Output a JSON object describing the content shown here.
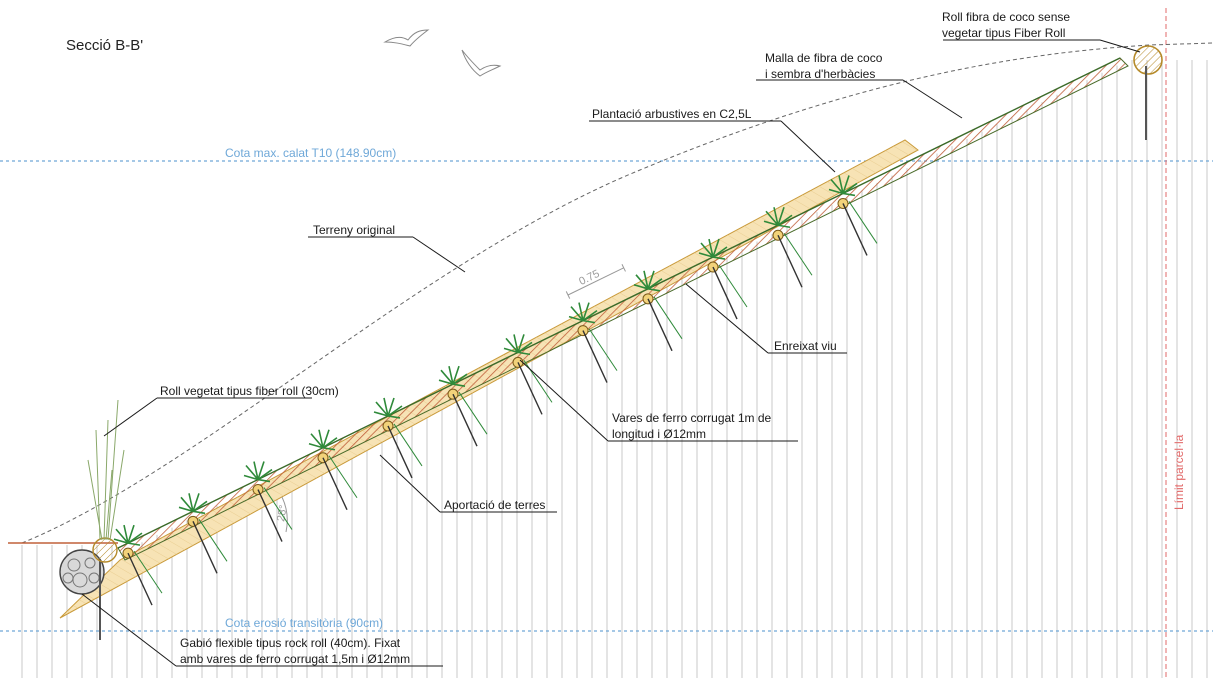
{
  "title": "Secció B-B'",
  "water_levels": {
    "max": "Cota max. calat T10 (148.90cm)",
    "erosion": "Cota erosió transitòria (90cm)"
  },
  "parcel_limit": "Límit parcel·la",
  "dimensions": {
    "spacing": "0.75",
    "angle": "28°"
  },
  "labels": {
    "roll_unvegetated_line1": "Roll fibra de coco sense",
    "roll_unvegetated_line2": "vegetar tipus Fiber Roll",
    "mesh_line1": "Malla de fibra de coco",
    "mesh_line2": "i sembra d'herbàcies",
    "shrub_planting": "Plantació arbustives en C2,5L",
    "original_terrain": "Terreny original",
    "live_trellis": "Enreixat viu",
    "roll_vegetated": "Roll vegetat tipus fiber roll (30cm)",
    "rebars_line1": "Vares de ferro corrugat 1m de",
    "rebars_line2": "longitud i Ø12mm",
    "soil_input": "Aportació de terres",
    "gabion_line1": "Gabió flexible tipus rock roll (40cm). Fixat",
    "gabion_line2": "amb vares de ferro corrugat 1,5m i Ø12mm"
  },
  "colors": {
    "water_line": "#6fa8d8",
    "parcel_line": "#e26a6a",
    "soil_fill": "#f7e3b5",
    "mesh": "#c0603a",
    "plant": "#2f8a3a"
  }
}
